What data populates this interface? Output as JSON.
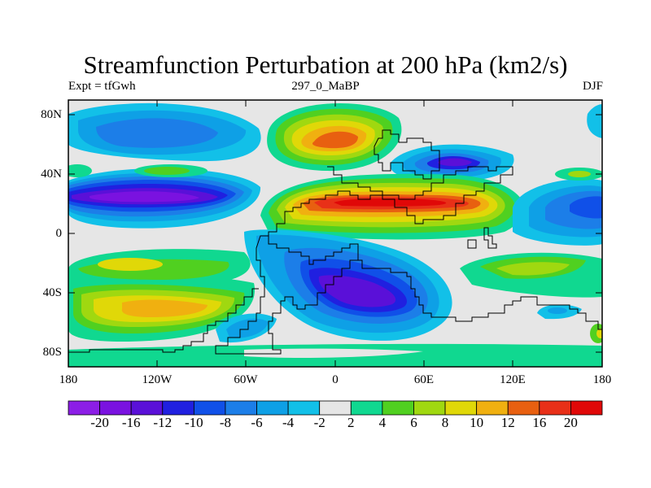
{
  "title": "Streamfunction Perturbation at 200 hPa (km2/s)",
  "left_label": "Expt = tfGwh",
  "center_label": "297_0_MaBP",
  "right_label": "DJF",
  "y_ticks": [
    "80N",
    "40N",
    "0",
    "40S",
    "80S"
  ],
  "x_ticks": [
    "180",
    "120W",
    "60W",
    "0",
    "60E",
    "120E",
    "180"
  ],
  "colorbar": {
    "labels": [
      "-20",
      "-16",
      "-12",
      "-10",
      "-8",
      "-6",
      "-4",
      "-2",
      "2",
      "4",
      "6",
      "8",
      "10",
      "12",
      "16",
      "20"
    ],
    "colors": [
      "#8c1ee6",
      "#7a12e0",
      "#5a10d8",
      "#2020e0",
      "#1050e8",
      "#1c7ee8",
      "#0ea0e6",
      "#12c0e8",
      "#e6e6e6",
      "#10d890",
      "#50d020",
      "#a0d810",
      "#e0d808",
      "#f0b010",
      "#e86010",
      "#e83018",
      "#e00808"
    ]
  }
}
